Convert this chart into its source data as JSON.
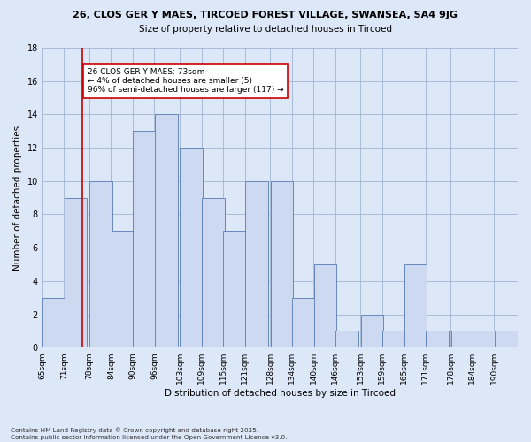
{
  "title1": "26, CLOS GER Y MAES, TIRCOED FOREST VILLAGE, SWANSEA, SA4 9JG",
  "title2": "Size of property relative to detached houses in Tircoed",
  "xlabel": "Distribution of detached houses by size in Tircoed",
  "ylabel": "Number of detached properties",
  "categories": [
    "65sqm",
    "71sqm",
    "78sqm",
    "84sqm",
    "90sqm",
    "96sqm",
    "103sqm",
    "109sqm",
    "115sqm",
    "121sqm",
    "128sqm",
    "134sqm",
    "140sqm",
    "146sqm",
    "153sqm",
    "159sqm",
    "165sqm",
    "171sqm",
    "178sqm",
    "184sqm",
    "190sqm"
  ],
  "values": [
    3,
    9,
    10,
    7,
    13,
    14,
    12,
    9,
    7,
    10,
    10,
    3,
    5,
    1,
    2,
    1,
    5,
    1,
    1,
    1,
    1
  ],
  "bar_color": "#ccd9f0",
  "bar_edge_color": "#6688bb",
  "grid_color": "#aabbd8",
  "bg_color": "#dce8f8",
  "ref_line_color": "#cc0000",
  "annotation_text": "26 CLOS GER Y MAES: 73sqm\n← 4% of detached houses are smaller (5)\n96% of semi-detached houses are larger (117) →",
  "annotation_box_color": "white",
  "annotation_box_edge": "#cc0000",
  "ylim": [
    0,
    18
  ],
  "yticks": [
    0,
    2,
    4,
    6,
    8,
    10,
    12,
    14,
    16,
    18
  ],
  "bin_width": 6.5,
  "bin_starts": [
    62,
    68,
    75,
    81,
    87,
    93,
    100,
    106,
    112,
    118,
    125,
    131,
    137,
    143,
    150,
    156,
    162,
    168,
    175,
    181,
    187
  ],
  "ref_line_x": 73,
  "footer": "Contains HM Land Registry data © Crown copyright and database right 2025.\nContains public sector information licensed under the Open Government Licence v3.0."
}
